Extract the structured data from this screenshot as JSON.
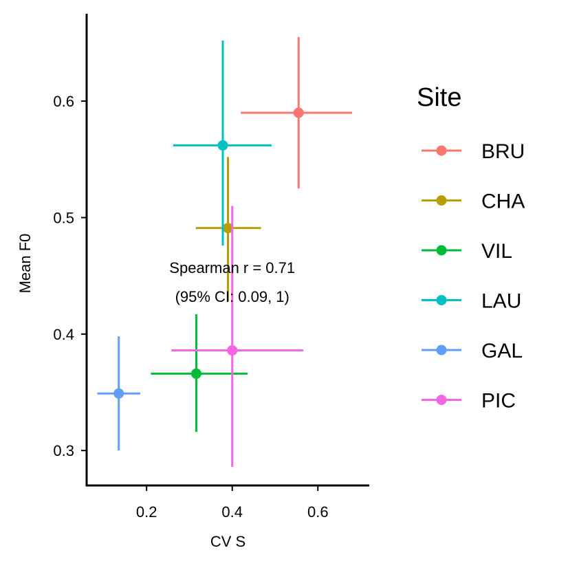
{
  "chart_data": {
    "type": "scatter",
    "xlabel": "CV S",
    "ylabel": "Mean F0",
    "xlim": [
      0.06,
      0.72
    ],
    "ylim": [
      0.27,
      0.675
    ],
    "xticks": [
      0.2,
      0.4,
      0.6
    ],
    "yticks": [
      0.3,
      0.4,
      0.5,
      0.6
    ],
    "xtick_labels": [
      "0.2",
      "0.4",
      "0.6"
    ],
    "ytick_labels": [
      "0.3",
      "0.4",
      "0.5",
      "0.6"
    ],
    "grid": false,
    "legend": {
      "title": "Site",
      "position": "right"
    },
    "annotation": {
      "line1": "Spearman r = 0.71",
      "line2": "(95% CI: 0.09, 1)",
      "x": 0.4,
      "y": 0.43
    },
    "series": [
      {
        "name": "BRU",
        "color": "#F8766D",
        "x": 0.555,
        "y": 0.59,
        "x_err": [
          0.42,
          0.68
        ],
        "y_err": [
          0.525,
          0.655
        ]
      },
      {
        "name": "CHA",
        "color": "#B79F00",
        "x": 0.39,
        "y": 0.491,
        "x_err": [
          0.315,
          0.467
        ],
        "y_err": [
          0.428,
          0.552
        ]
      },
      {
        "name": "VIL",
        "color": "#00BA38",
        "x": 0.316,
        "y": 0.366,
        "x_err": [
          0.21,
          0.436
        ],
        "y_err": [
          0.316,
          0.417
        ]
      },
      {
        "name": "LAU",
        "color": "#00BFC4",
        "x": 0.378,
        "y": 0.562,
        "x_err": [
          0.262,
          0.492
        ],
        "y_err": [
          0.476,
          0.652
        ]
      },
      {
        "name": "GAL",
        "color": "#619CFF",
        "x": 0.135,
        "y": 0.349,
        "x_err": [
          0.085,
          0.185
        ],
        "y_err": [
          0.3,
          0.398
        ]
      },
      {
        "name": "PIC",
        "color": "#F564E3",
        "x": 0.4,
        "y": 0.386,
        "x_err": [
          0.258,
          0.566
        ],
        "y_err": [
          0.286,
          0.51
        ]
      }
    ]
  }
}
